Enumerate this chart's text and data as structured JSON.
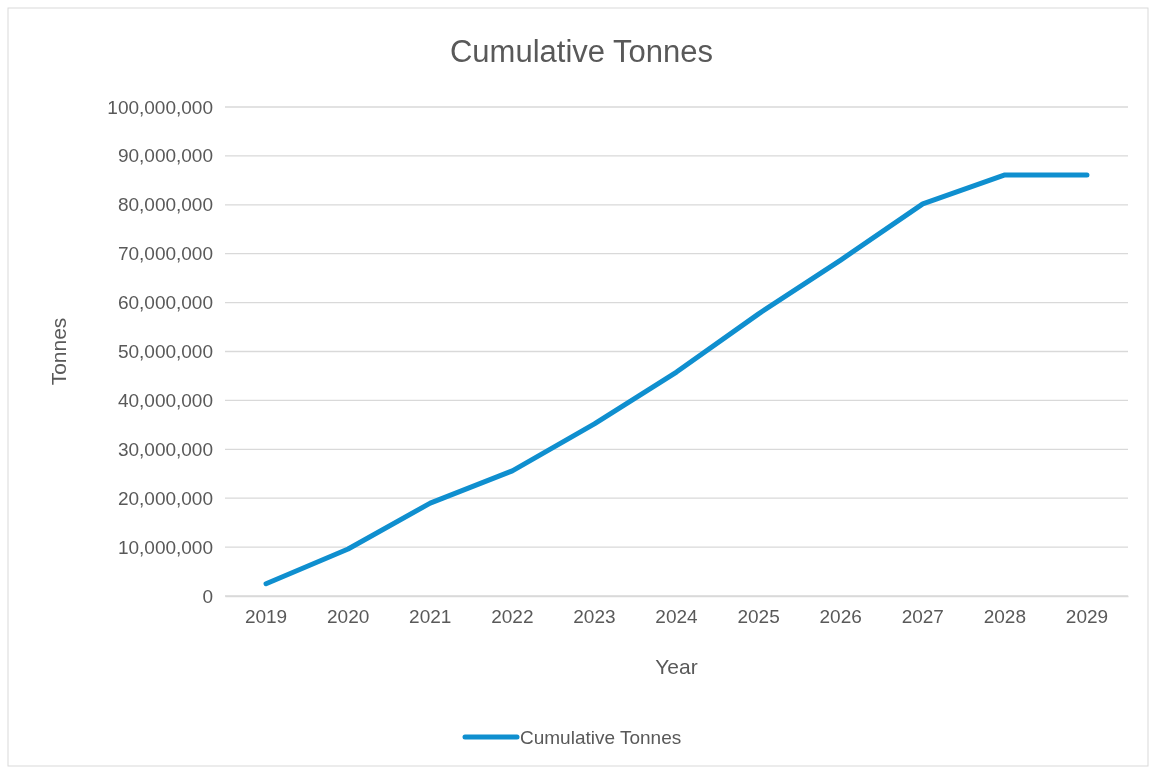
{
  "chart_data": {
    "type": "line",
    "title": "Cumulative Tonnes",
    "xlabel": "Year",
    "ylabel": "Tonnes",
    "categories": [
      "2019",
      "2020",
      "2021",
      "2022",
      "2023",
      "2024",
      "2025",
      "2026",
      "2027",
      "2028",
      "2029"
    ],
    "series": [
      {
        "name": "Cumulative Tonnes",
        "color": "#0f8fcf",
        "values": [
          2500000,
          9600000,
          19000000,
          25600000,
          35200000,
          45800000,
          57700000,
          68700000,
          80200000,
          86100000,
          86100000
        ]
      }
    ],
    "ylim": [
      0,
      100000000
    ],
    "yticks": [
      {
        "value": 0,
        "label": "0"
      },
      {
        "value": 10000000,
        "label": "10,000,000"
      },
      {
        "value": 20000000,
        "label": "20,000,000"
      },
      {
        "value": 30000000,
        "label": "30,000,000"
      },
      {
        "value": 40000000,
        "label": "40,000,000"
      },
      {
        "value": 50000000,
        "label": "50,000,000"
      },
      {
        "value": 60000000,
        "label": "60,000,000"
      },
      {
        "value": 70000000,
        "label": "70,000,000"
      },
      {
        "value": 80000000,
        "label": "80,000,000"
      },
      {
        "value": 90000000,
        "label": "90,000,000"
      },
      {
        "value": 100000000,
        "label": "100,000,000"
      }
    ],
    "grid": "y",
    "legend": "bottom",
    "marker": "none",
    "line_style": "solid"
  }
}
